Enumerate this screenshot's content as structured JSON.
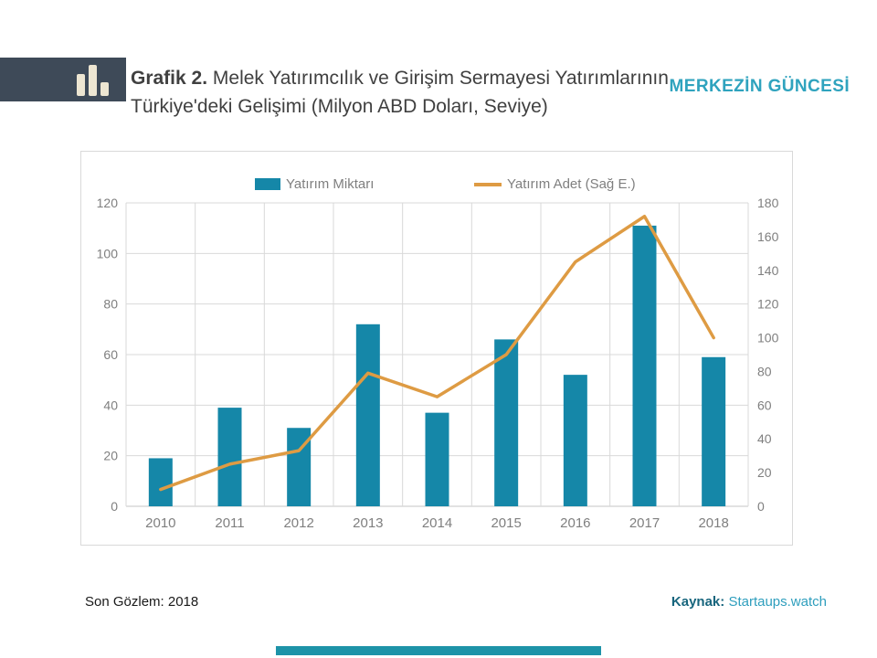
{
  "header": {
    "grafik_label": "Grafik 2.",
    "title_line1": "Melek Yatırımcılık ve Girişim Sermayesi Yatırımlarının",
    "title_line2": "Türkiye'deki Gelişimi (Milyon ABD Doları, Seviye)",
    "brand": "MERKEZİN GÜNCESİ"
  },
  "chart_data": {
    "type": "combo",
    "categories": [
      "2010",
      "2011",
      "2012",
      "2013",
      "2014",
      "2015",
      "2016",
      "2017",
      "2018"
    ],
    "series": [
      {
        "name": "Yatırım Miktarı",
        "type": "bar",
        "axis": "left",
        "values": [
          19,
          39,
          31,
          72,
          37,
          66,
          52,
          111,
          59
        ]
      },
      {
        "name": "Yatırım Adet (Sağ E.)",
        "type": "line",
        "axis": "right",
        "values": [
          10,
          25,
          33,
          79,
          65,
          90,
          145,
          172,
          100
        ]
      }
    ],
    "left_axis": {
      "min": 0,
      "max": 120,
      "step": 20
    },
    "right_axis": {
      "min": 0,
      "max": 180,
      "step": 20
    },
    "grid": true,
    "legend_position": "top"
  },
  "footer": {
    "observation": "Son Gözlem: 2018",
    "source_label": "Kaynak:",
    "source_value": "Startaups.watch"
  },
  "colors": {
    "banner": "#3E4A58",
    "icon_bars": "#EDE6D2",
    "brand": "#2FA3BE",
    "title_text": "#404040",
    "axis_text": "#7F7F7F",
    "grid": "#D9D9D9",
    "axis_line": "#C6C6C6",
    "bar": "#1587A8",
    "line": "#DE9B43",
    "source_label": "#17657D",
    "source_value": "#2E9EBD",
    "bottom_bar": "#1D93A8"
  }
}
